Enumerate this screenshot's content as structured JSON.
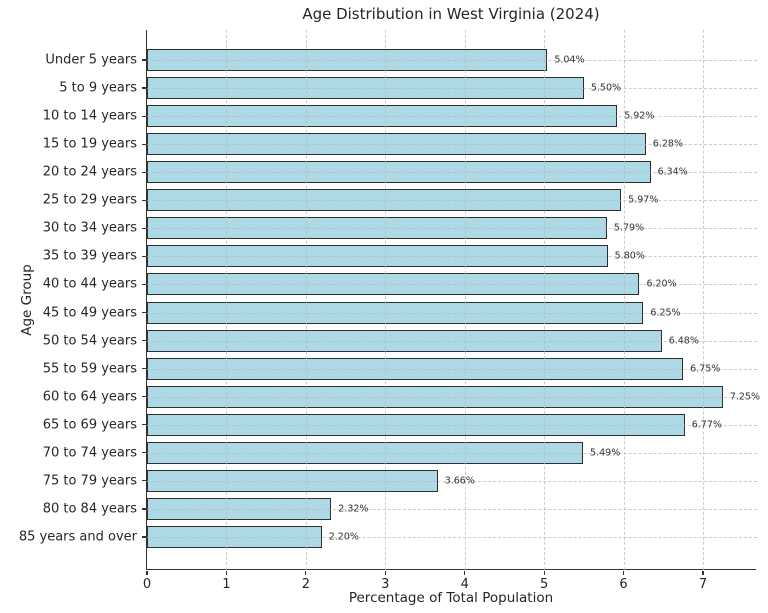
{
  "chart_data": {
    "type": "bar",
    "orientation": "horizontal",
    "title": "Age Distribution in West Virginia (2024)",
    "xlabel": "Percentage of Total Population",
    "ylabel": "Age Group",
    "categories": [
      "Under 5 years",
      "5 to 9 years",
      "10 to 14 years",
      "15 to 19 years",
      "20 to 24 years",
      "25 to 29 years",
      "30 to 34 years",
      "35 to 39 years",
      "40 to 44 years",
      "45 to 49 years",
      "50 to 54 years",
      "55 to 59 years",
      "60 to 64 years",
      "65 to 69 years",
      "70 to 74 years",
      "75 to 79 years",
      "80 to 84 years",
      "85 years and over"
    ],
    "values": [
      5.04,
      5.5,
      5.92,
      6.28,
      6.34,
      5.97,
      5.79,
      5.8,
      6.2,
      6.25,
      6.48,
      6.75,
      7.25,
      6.77,
      5.49,
      3.66,
      2.32,
      2.2
    ],
    "value_labels": [
      "5.04%",
      "5.50%",
      "5.92%",
      "6.28%",
      "6.34%",
      "5.97%",
      "5.79%",
      "5.80%",
      "6.20%",
      "6.25%",
      "6.48%",
      "6.75%",
      "7.25%",
      "6.77%",
      "5.49%",
      "3.66%",
      "2.32%",
      "2.20%"
    ],
    "x_ticks": [
      0,
      1,
      2,
      3,
      4,
      5,
      6,
      7
    ],
    "xlim": [
      0,
      7.68
    ],
    "grid": "dashed",
    "legend": "none",
    "colors": {
      "bar_fill": "#ADD8E6",
      "bar_edge": "#2F2F2F",
      "spine": "#333333",
      "grid": "#B9B9B9",
      "text": "#262626"
    }
  }
}
